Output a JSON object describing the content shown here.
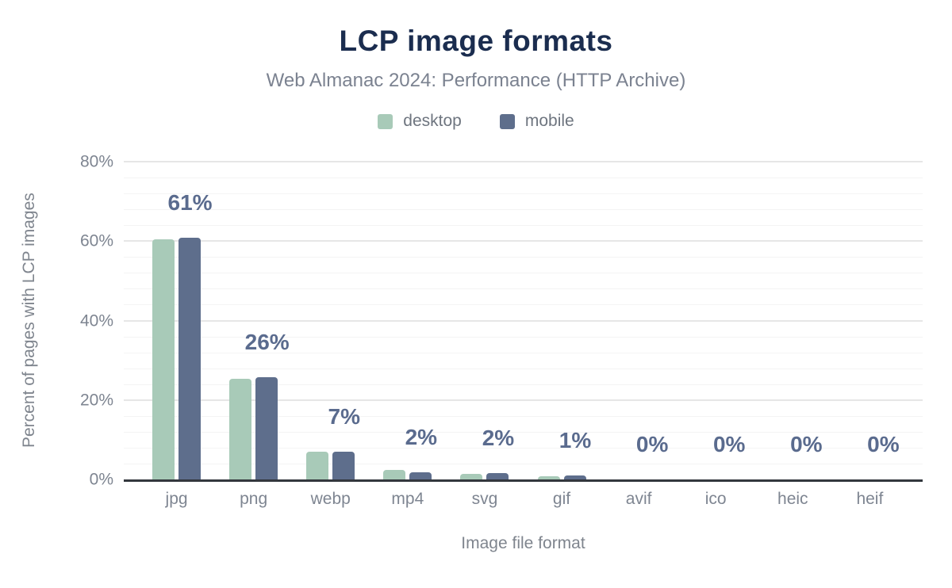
{
  "title": "LCP image formats",
  "subtitle": "Web Almanac 2024: Performance (HTTP Archive)",
  "chart_data": {
    "type": "bar",
    "title": "LCP image formats",
    "subtitle": "Web Almanac 2024: Performance (HTTP Archive)",
    "categories": [
      "jpg",
      "png",
      "webp",
      "mp4",
      "svg",
      "gif",
      "avif",
      "ico",
      "heic",
      "heif"
    ],
    "series": [
      {
        "name": "desktop",
        "color": "#a8cab8",
        "values": [
          60.4,
          25.4,
          7.0,
          2.4,
          1.4,
          0.9,
          0,
          0,
          0,
          0
        ]
      },
      {
        "name": "mobile",
        "color": "#5e6e8c",
        "values": [
          60.9,
          25.8,
          7.0,
          1.8,
          1.6,
          1.1,
          0,
          0,
          0,
          0
        ]
      }
    ],
    "bar_labels": [
      "61%",
      "26%",
      "7%",
      "2%",
      "2%",
      "1%",
      "0%",
      "0%",
      "0%",
      "0%"
    ],
    "xlabel": "Image file format",
    "ylabel": "Percent of pages with LCP images",
    "ylim": [
      0,
      80
    ],
    "y_ticks": [
      0,
      20,
      40,
      60,
      80
    ],
    "y_tick_labels": [
      "0%",
      "20%",
      "40%",
      "60%",
      "80%"
    ],
    "grid": {
      "major_interval": 20,
      "minor_interval": 4,
      "visible": true
    },
    "legend_position": "top"
  },
  "style": {
    "title_color": "#1b2d4f",
    "subtitle_color": "#7b8290",
    "legend_text_color": "#6e757f",
    "tick_color": "#7e8591",
    "axis_title_color": "#7f858e",
    "bar_label_color": "#5a6b8e",
    "axis_line_color": "#33373d",
    "grid_major_color": "#e6e6e6",
    "grid_minor_color": "#f4f4f4",
    "background": "#ffffff"
  }
}
